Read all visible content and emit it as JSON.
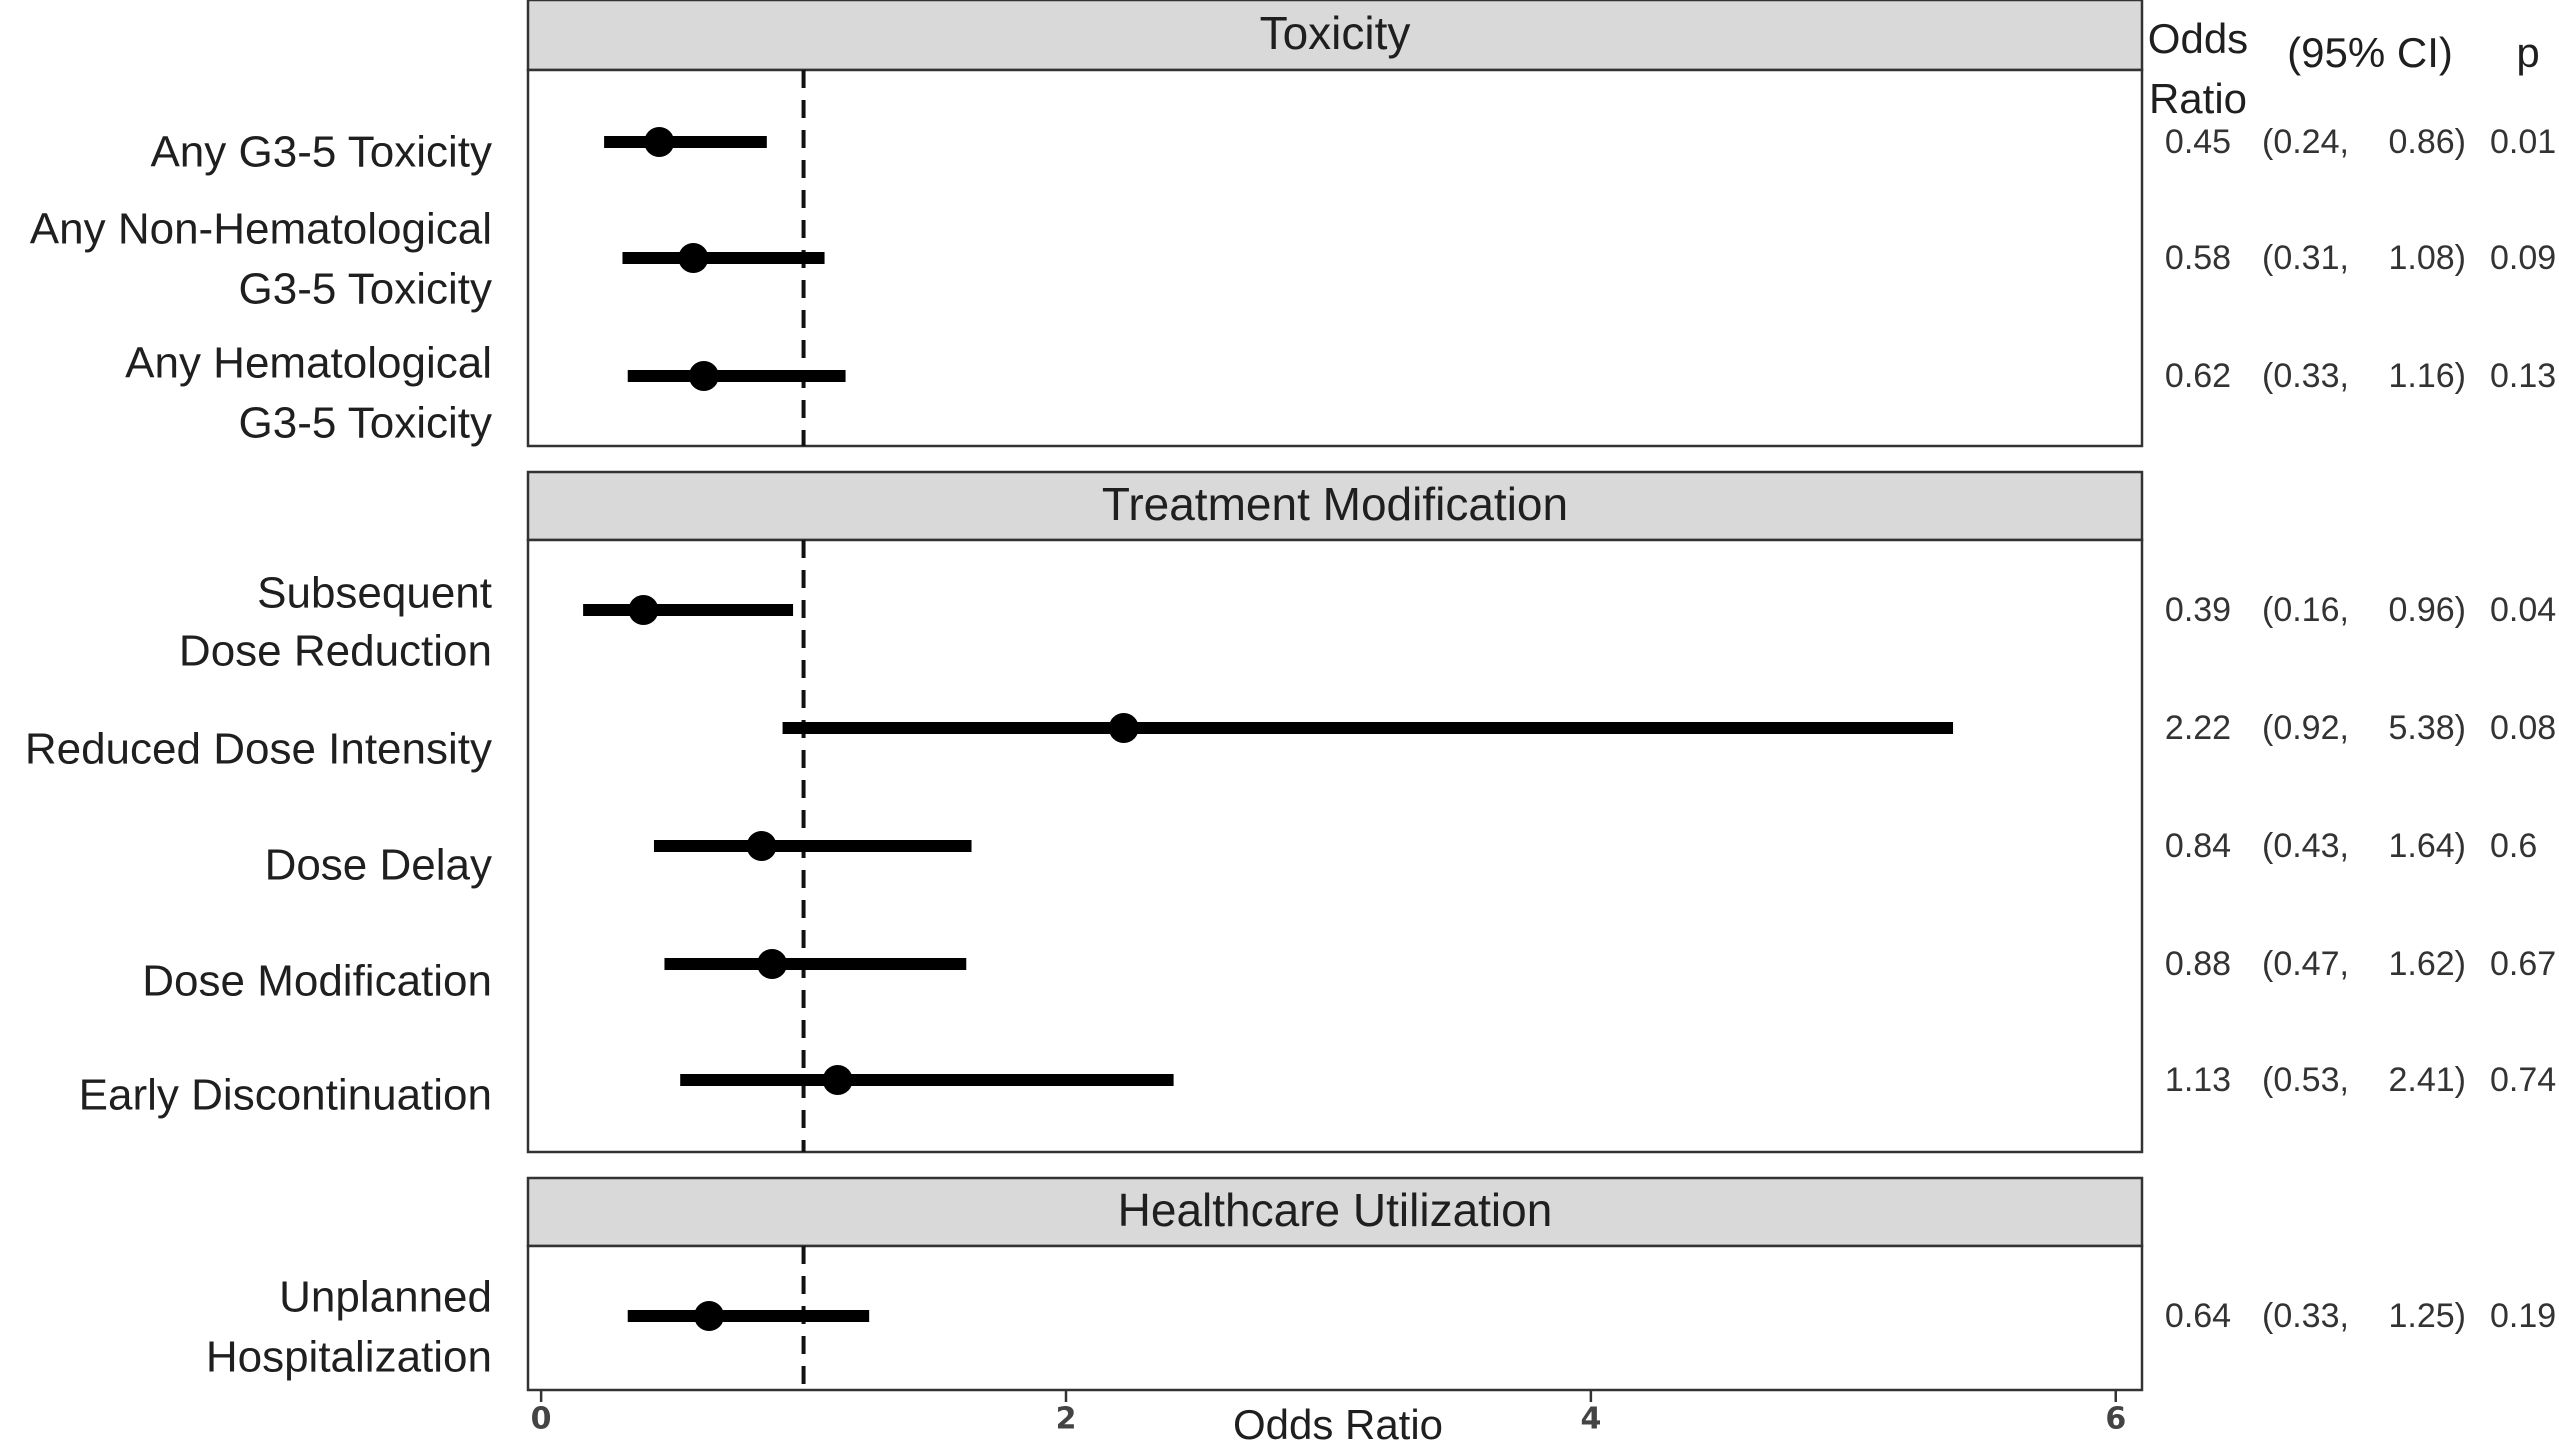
{
  "chart_data": {
    "type": "forest",
    "xlabel": "Odds Ratio",
    "xlim": [
      -0.05,
      6.1
    ],
    "xticks": [
      0,
      2,
      4,
      6
    ],
    "tick_labels": [
      "0",
      "2",
      "4",
      "6"
    ],
    "reference_line": 1,
    "grid": false,
    "columns": {
      "or_header": [
        "Odds",
        "Ratio"
      ],
      "ci_header": "(95% CI)",
      "p_header": "p"
    },
    "panels": [
      {
        "title": "Toxicity",
        "rows": [
          {
            "label": [
              "Any G3-5 Toxicity"
            ],
            "or": 0.45,
            "lo": 0.24,
            "hi": 0.86,
            "or_text": "0.45",
            "lo_text": "(0.24,",
            "hi_text": "0.86)",
            "p": "0.01"
          },
          {
            "label": [
              "Any Non-Hematological",
              "G3-5 Toxicity"
            ],
            "or": 0.58,
            "lo": 0.31,
            "hi": 1.08,
            "or_text": "0.58",
            "lo_text": "(0.31,",
            "hi_text": "1.08)",
            "p": "0.09"
          },
          {
            "label": [
              "Any Hematological",
              "G3-5 Toxicity"
            ],
            "or": 0.62,
            "lo": 0.33,
            "hi": 1.16,
            "or_text": "0.62",
            "lo_text": "(0.33,",
            "hi_text": "1.16)",
            "p": "0.13"
          }
        ]
      },
      {
        "title": "Treatment Modification",
        "rows": [
          {
            "label": [
              "Subsequent",
              "Dose Reduction"
            ],
            "or": 0.39,
            "lo": 0.16,
            "hi": 0.96,
            "or_text": "0.39",
            "lo_text": "(0.16,",
            "hi_text": "0.96)",
            "p": "0.04"
          },
          {
            "label": [
              "Reduced Dose Intensity"
            ],
            "or": 2.22,
            "lo": 0.92,
            "hi": 5.38,
            "or_text": "2.22",
            "lo_text": "(0.92,",
            "hi_text": "5.38)",
            "p": "0.08"
          },
          {
            "label": [
              "Dose Delay"
            ],
            "or": 0.84,
            "lo": 0.43,
            "hi": 1.64,
            "or_text": "0.84",
            "lo_text": "(0.43,",
            "hi_text": "1.64)",
            "p": "0.6"
          },
          {
            "label": [
              "Dose Modification"
            ],
            "or": 0.88,
            "lo": 0.47,
            "hi": 1.62,
            "or_text": "0.88",
            "lo_text": "(0.47,",
            "hi_text": "1.62)",
            "p": "0.67"
          },
          {
            "label": [
              "Early Discontinuation"
            ],
            "or": 1.13,
            "lo": 0.53,
            "hi": 2.41,
            "or_text": "1.13",
            "lo_text": "(0.53,",
            "hi_text": "2.41)",
            "p": "0.74"
          }
        ]
      },
      {
        "title": "Healthcare Utilization",
        "rows": [
          {
            "label": [
              "Unplanned",
              "Hospitalization"
            ],
            "or": 0.64,
            "lo": 0.33,
            "hi": 1.25,
            "or_text": "0.64",
            "lo_text": "(0.33,",
            "hi_text": "1.25)",
            "p": "0.19"
          }
        ]
      }
    ]
  }
}
